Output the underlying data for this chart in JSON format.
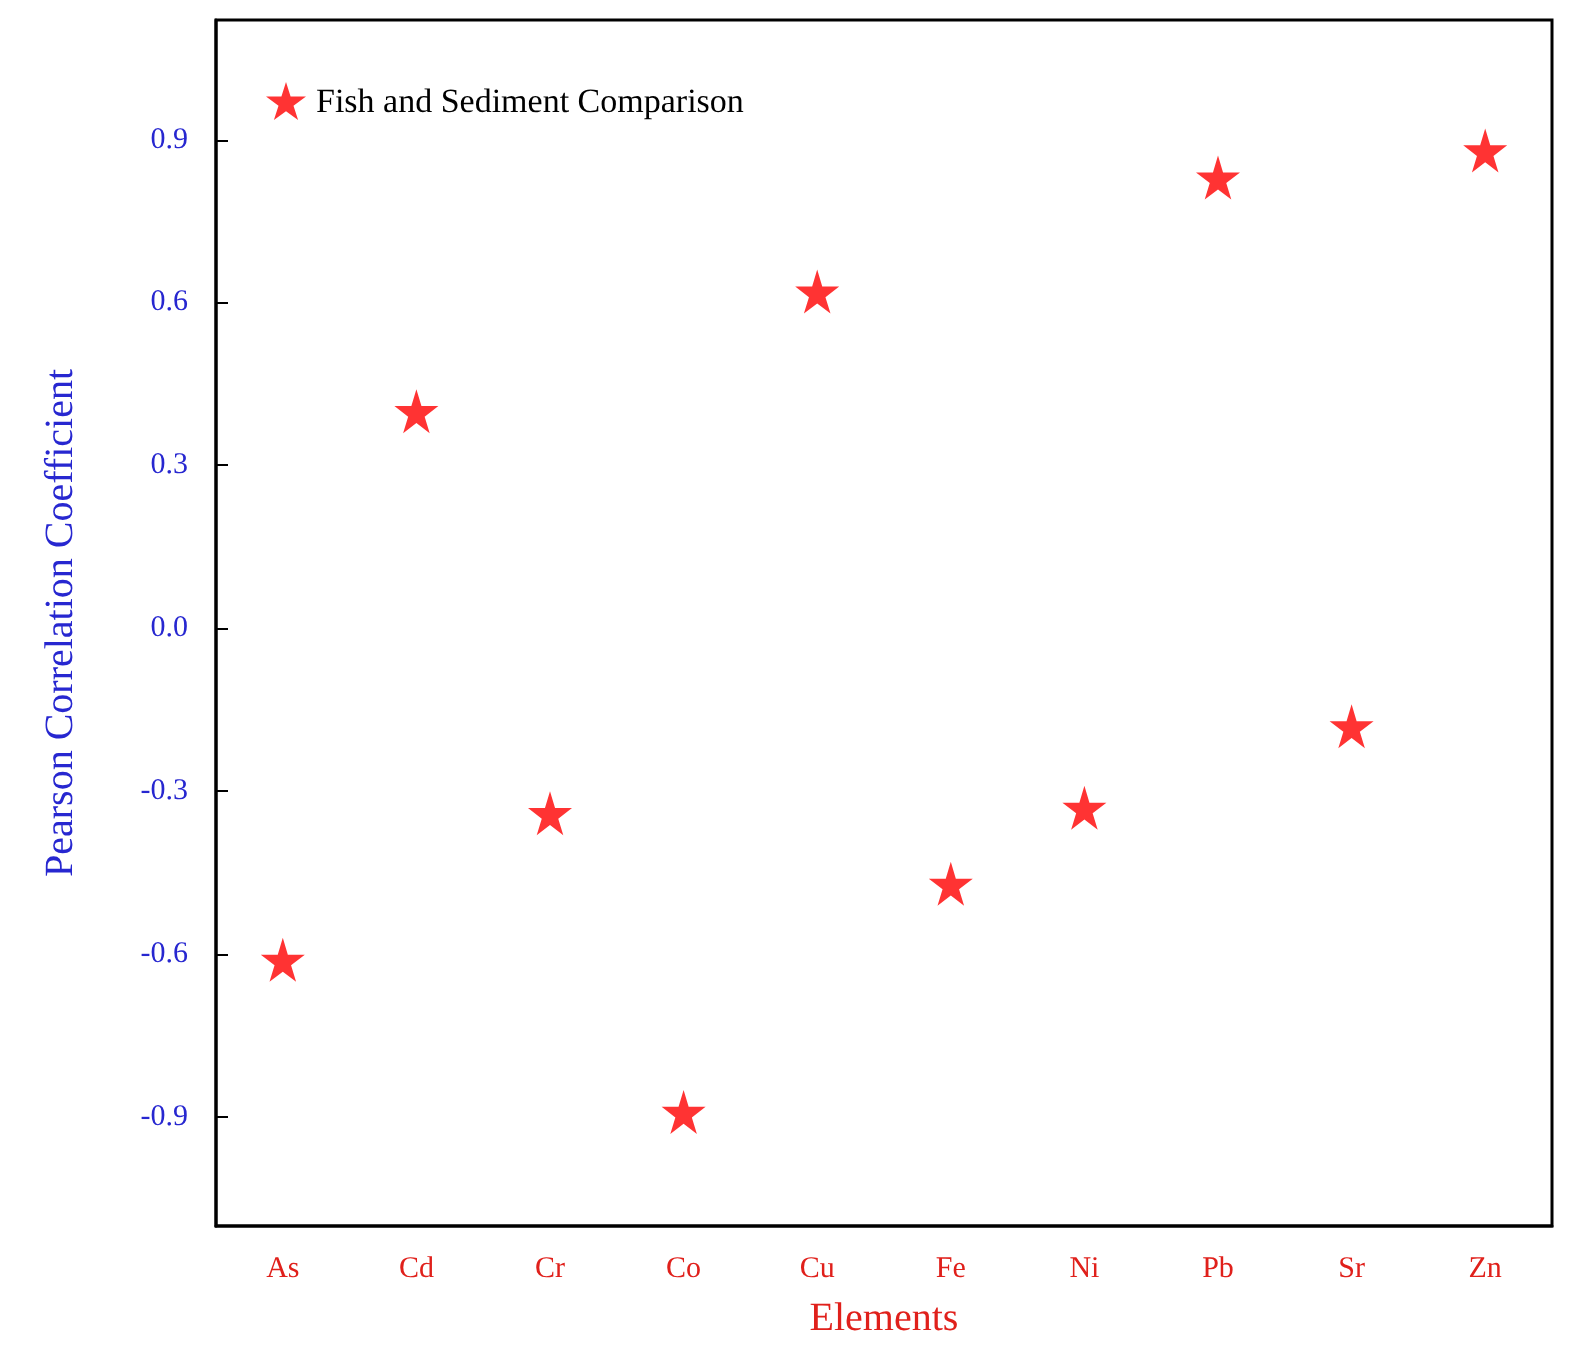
{
  "chart_data": {
    "type": "scatter",
    "xlabel": "Elements",
    "ylabel": "Pearson Correlation Coefficient",
    "categories": [
      "As",
      "Cd",
      "Cr",
      "Co",
      "Cu",
      "Fe",
      "Ni",
      "Pb",
      "Sr",
      "Zn"
    ],
    "series": [
      {
        "name": "Fish and Sediment Comparison",
        "color": "#ff0000",
        "values": [
          -0.61,
          0.4,
          -0.34,
          -0.89,
          0.62,
          -0.47,
          -0.33,
          0.83,
          -0.18,
          0.88
        ]
      }
    ],
    "ylim": [
      -1.1,
      1.12
    ],
    "yticks": [
      {
        "value": -0.9,
        "label": "-0.9"
      },
      {
        "value": -0.6,
        "label": "-0.6"
      },
      {
        "value": -0.3,
        "label": "-0.3"
      },
      {
        "value": 0,
        "label": "0.0"
      },
      {
        "value": 0.3,
        "label": "0.3"
      },
      {
        "value": 0.6,
        "label": "0.6"
      },
      {
        "value": 0.9,
        "label": "0.9"
      }
    ],
    "grid": false,
    "legend": "top left",
    "marker": "star"
  }
}
